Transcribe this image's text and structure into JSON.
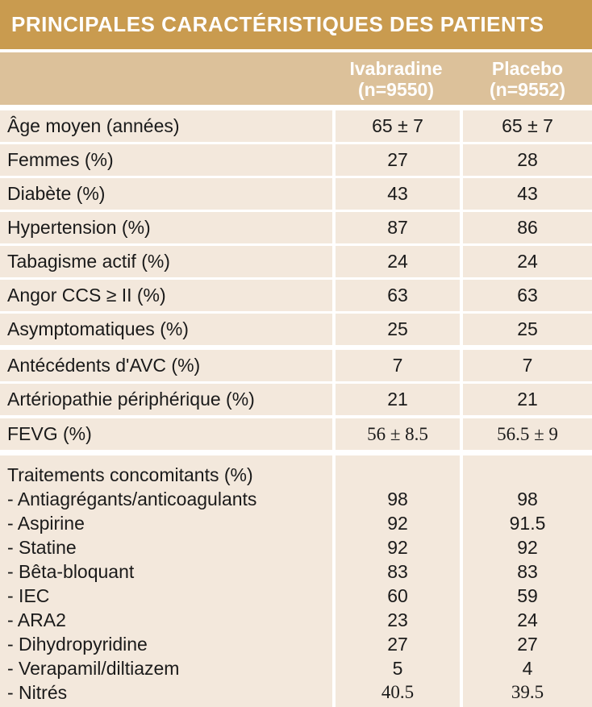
{
  "title": "PRINCIPALES CARACTÉRISTIQUES DES PATIENTS",
  "colors": {
    "title_bg": "#c99b4f",
    "header_bg": "#dcc19a",
    "row_bg": "#f3e8dc"
  },
  "header": {
    "col1_name": "Ivabradine",
    "col1_n": "(n=9550)",
    "col2_name": "Placebo",
    "col2_n": "(n=9552)"
  },
  "rows": [
    {
      "label": "Âge moyen (années)",
      "ivabradine": "65 ± 7",
      "placebo": "65 ± 7"
    },
    {
      "label": "Femmes (%)",
      "ivabradine": "27",
      "placebo": "28"
    },
    {
      "label": "Diabète (%)",
      "ivabradine": "43",
      "placebo": "43"
    },
    {
      "label": "Hypertension (%)",
      "ivabradine": "87",
      "placebo": "86"
    },
    {
      "label": "Tabagisme actif (%)",
      "ivabradine": "24",
      "placebo": "24"
    },
    {
      "label": "Angor CCS ≥ II (%)",
      "ivabradine": "63",
      "placebo": "63"
    },
    {
      "label": "Asymptomatiques (%)",
      "ivabradine": "25",
      "placebo": "25"
    },
    {
      "label": "Antécédents d'AVC (%)",
      "ivabradine": "7",
      "placebo": "7"
    },
    {
      "label": "Artériopathie périphérique (%)",
      "ivabradine": "21",
      "placebo": "21"
    },
    {
      "label": "FEVG (%)",
      "ivabradine": "56 ± 8.5",
      "placebo": "56.5 ± 9"
    }
  ],
  "treatments": {
    "heading": "Traitements concomitants (%)",
    "items": [
      {
        "label": "- Antiagrégants/anticoagulants",
        "ivabradine": "98",
        "placebo": "98"
      },
      {
        "label": "- Aspirine",
        "ivabradine": "92",
        "placebo": "91.5"
      },
      {
        "label": "- Statine",
        "ivabradine": "92",
        "placebo": "92"
      },
      {
        "label": "- Bêta-bloquant",
        "ivabradine": "83",
        "placebo": "83"
      },
      {
        "label": "- IEC",
        "ivabradine": "60",
        "placebo": "59"
      },
      {
        "label": "- ARA2",
        "ivabradine": "23",
        "placebo": "24"
      },
      {
        "label": "- Dihydropyridine",
        "ivabradine": "27",
        "placebo": "27"
      },
      {
        "label": "- Verapamil/diltiazem",
        "ivabradine": "5",
        "placebo": "4"
      },
      {
        "label": "- Nitrés",
        "ivabradine": "40.5",
        "placebo": "39.5"
      }
    ]
  }
}
